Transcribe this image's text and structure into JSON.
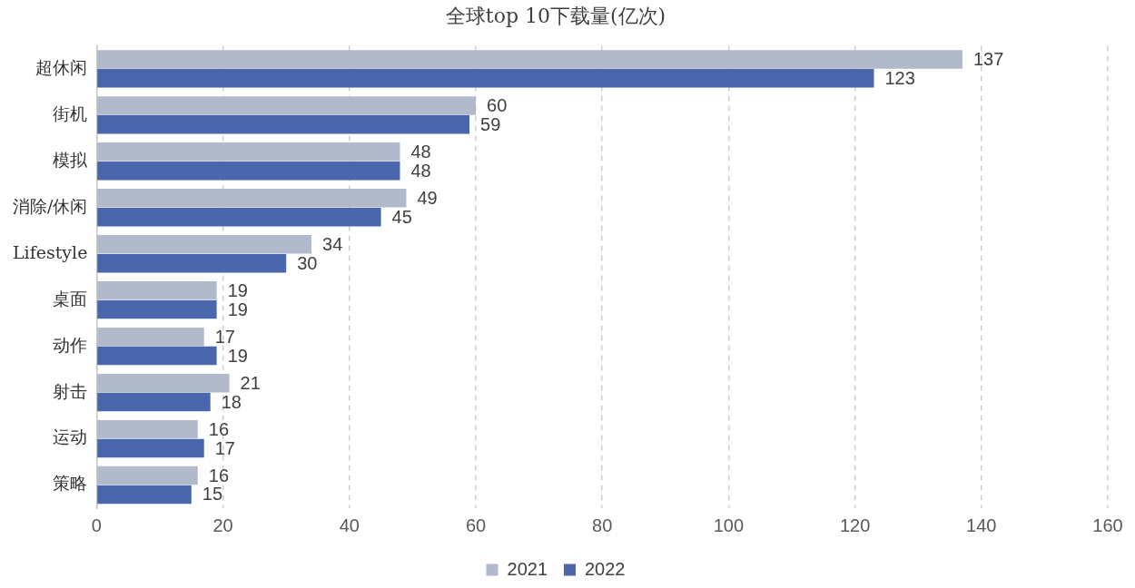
{
  "chart_data": {
    "type": "bar",
    "orientation": "horizontal",
    "title": "全球top 10下载量(亿次)",
    "categories": [
      "超休闲",
      "街机",
      "模拟",
      "消除/休闲",
      "Lifestyle",
      "桌面",
      "动作",
      "射击",
      "运动",
      "策略"
    ],
    "series": [
      {
        "name": "2021",
        "color": "#b1bacb",
        "values": [
          137,
          60,
          48,
          49,
          34,
          19,
          17,
          21,
          16,
          16
        ]
      },
      {
        "name": "2022",
        "color": "#4a67ad",
        "values": [
          123,
          59,
          48,
          45,
          30,
          19,
          19,
          18,
          17,
          15
        ]
      }
    ],
    "xlim": [
      0,
      160
    ],
    "xticks": [
      0,
      20,
      40,
      60,
      80,
      100,
      120,
      140,
      160
    ],
    "grid": "x",
    "line_style": "dashed",
    "legend": "bottom",
    "data_labels": true
  }
}
